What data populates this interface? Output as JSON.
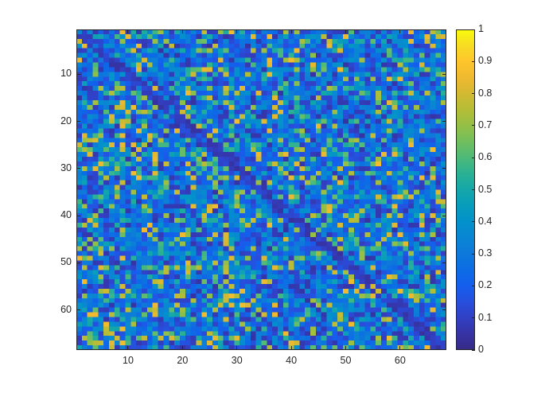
{
  "figure": {
    "background": "#ffffff",
    "axis_color": "#262626"
  },
  "chart_data": {
    "type": "heatmap",
    "title": "",
    "xlabel": "",
    "ylabel": "",
    "rows": 68,
    "cols": 68,
    "xlim": [
      0.5,
      68.5
    ],
    "ylim": [
      0.5,
      68.5
    ],
    "y_direction": "reverse",
    "x_ticks": [
      10,
      20,
      30,
      40,
      50,
      60
    ],
    "x_tick_labels": [
      "10",
      "20",
      "30",
      "40",
      "50",
      "60"
    ],
    "y_ticks": [
      10,
      20,
      30,
      40,
      50,
      60
    ],
    "y_tick_labels": [
      "10",
      "20",
      "30",
      "40",
      "50",
      "60"
    ],
    "colormap": "parula",
    "clim": [
      0,
      1
    ],
    "grid": false,
    "colorbar": {
      "position": "right",
      "ticks": [
        0,
        0.1,
        0.2,
        0.3,
        0.4,
        0.5,
        0.6,
        0.7,
        0.8,
        0.9,
        1
      ],
      "tick_labels": [
        "0",
        "0.1",
        "0.2",
        "0.3",
        "0.4",
        "0.5",
        "0.6",
        "0.7",
        "0.8",
        "0.9",
        "1"
      ]
    },
    "value_distribution": {
      "description": "Mostly low values (0.05-0.4) with scattered high values (0.65-0.85); main diagonal darker (near 0.05-0.15)",
      "seed": 20240611,
      "low_range": [
        0.05,
        0.42
      ],
      "mid_range": [
        0.45,
        0.65
      ],
      "high_range": [
        0.68,
        0.86
      ],
      "mid_probability": 0.14,
      "high_probability": 0.11,
      "diagonal_value_range": [
        0.04,
        0.14
      ],
      "diagonal_halfwidth": 1
    }
  }
}
